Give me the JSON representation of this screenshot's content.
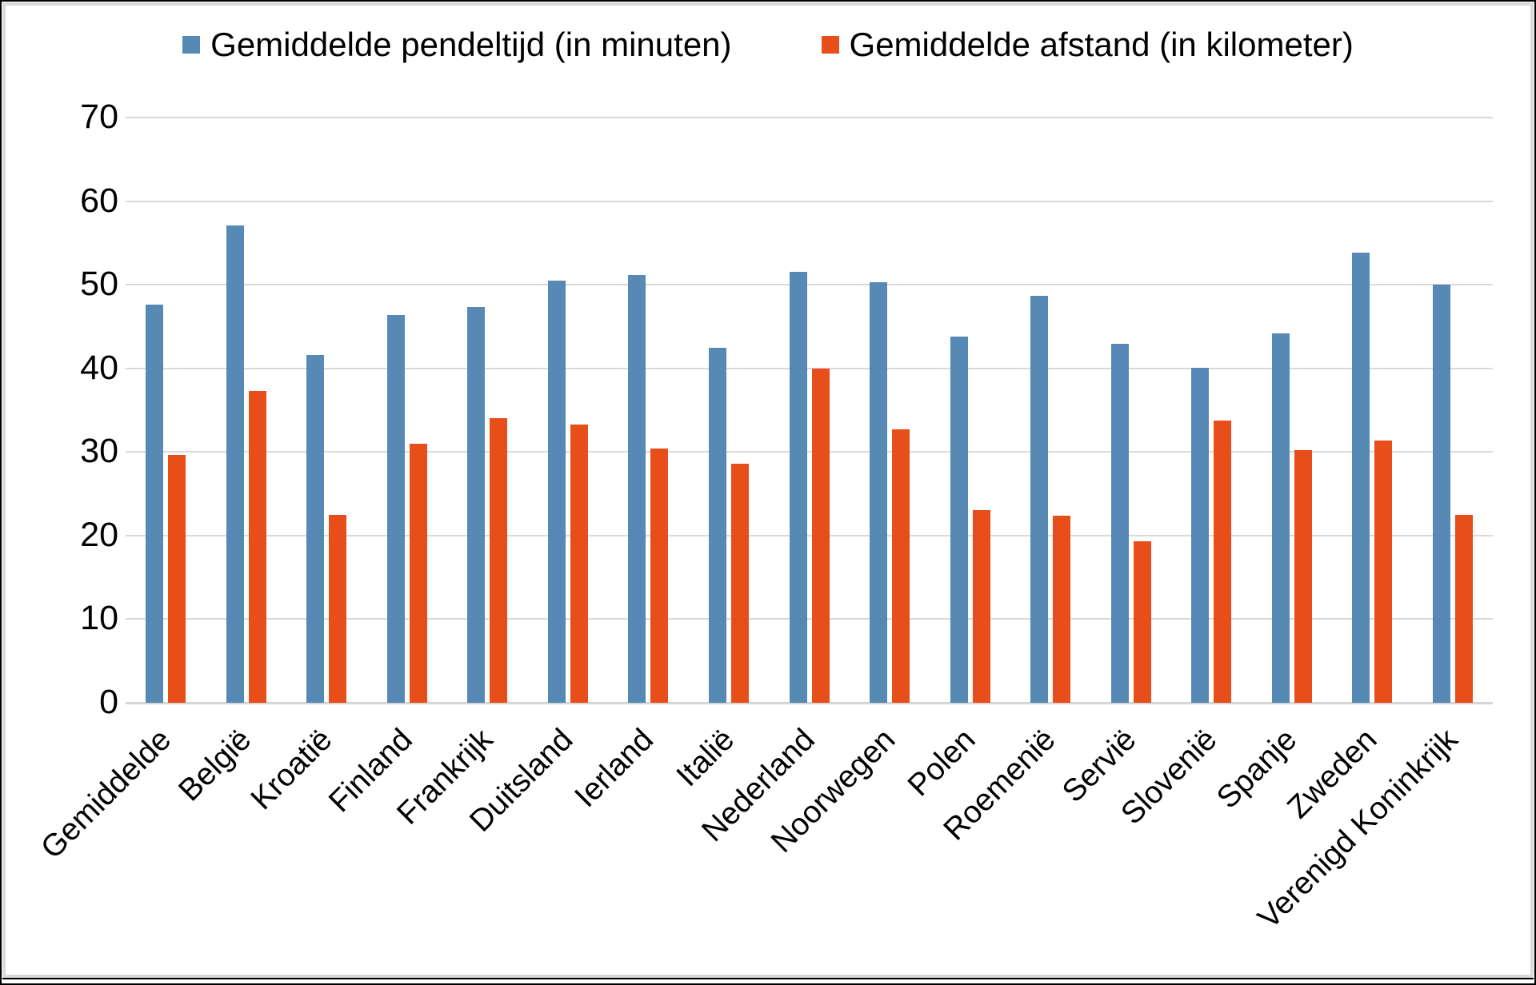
{
  "chart_data": {
    "type": "bar",
    "title": "",
    "categories": [
      "Gemiddelde",
      "België",
      "Kroatië",
      "Finland",
      "Frankrijk",
      "Duitsland",
      "Ierland",
      "Italië",
      "Nederland",
      "Noorwegen",
      "Polen",
      "Roemenië",
      "Servië",
      "Slovenië",
      "Spanje",
      "Zweden",
      "Verenigd Koninkrijk"
    ],
    "series": [
      {
        "name": "Gemiddelde pendeltijd (in minuten)",
        "color": "#568AB5",
        "values": [
          47.6,
          57.1,
          41.6,
          46.4,
          47.3,
          50.5,
          51.2,
          42.5,
          51.5,
          50.3,
          43.8,
          48.7,
          42.9,
          40.1,
          44.2,
          53.8,
          50.0
        ]
      },
      {
        "name": "Gemiddelde afstand (in kilometer)",
        "color": "#E84E1A",
        "values": [
          29.6,
          37.3,
          22.5,
          31.0,
          34.0,
          33.3,
          30.4,
          28.6,
          40.0,
          32.7,
          23.0,
          22.4,
          19.3,
          33.8,
          30.2,
          31.4,
          22.5
        ]
      }
    ],
    "yticks": [
      "0",
      "10",
      "20",
      "30",
      "40",
      "50",
      "60",
      "70"
    ],
    "ylim": [
      0,
      70
    ],
    "xlabel": "",
    "ylabel": "",
    "grid": true,
    "legend_position": "top-center",
    "gridline_color": "#D9D9D9",
    "background_color": "#FFFFFF"
  }
}
